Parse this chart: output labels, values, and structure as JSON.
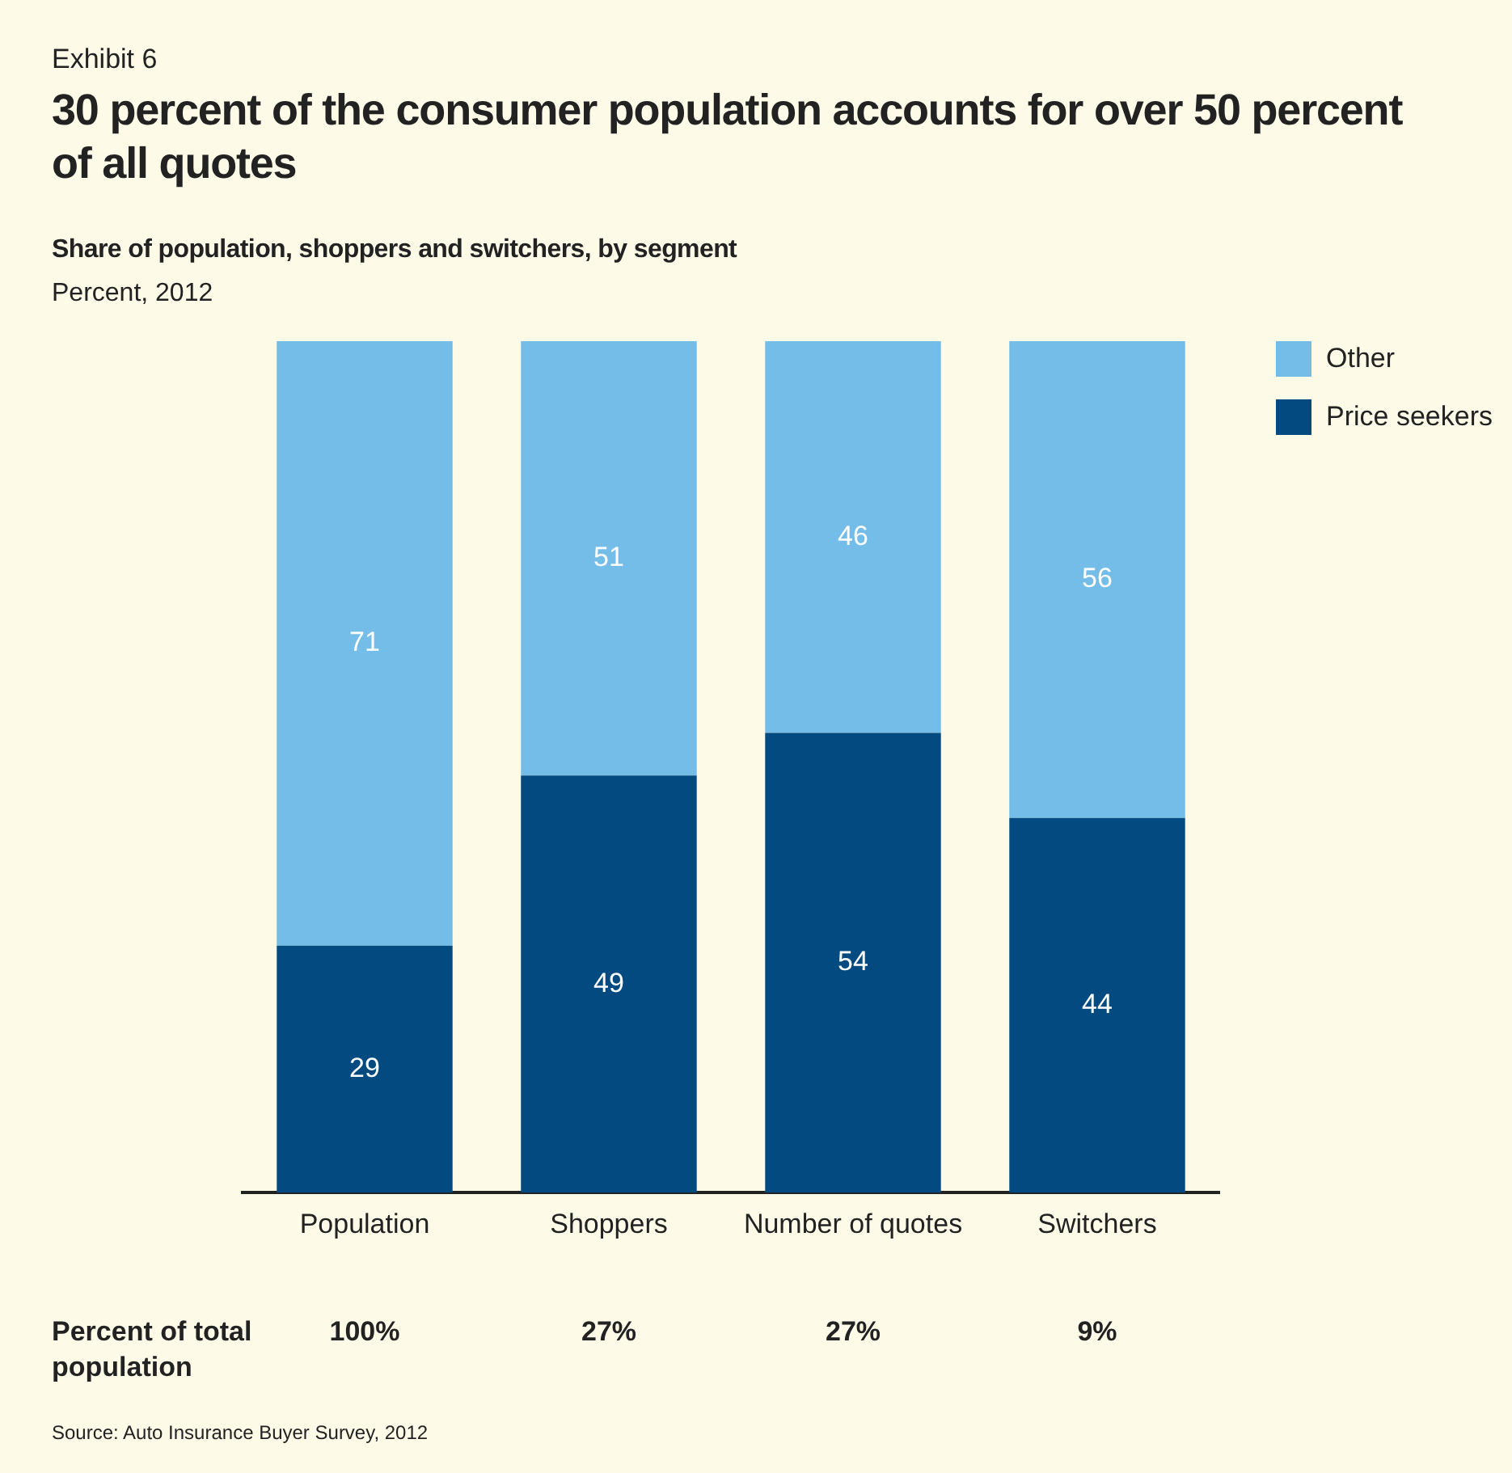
{
  "chart_data": {
    "type": "bar",
    "subtitle": "Exhibit 6",
    "title": "30 percent of the consumer population accounts for over 50 percent of all quotes",
    "ylabel": "Share of population, shoppers and switchers, by segment",
    "xlabel": "Percent, 2012",
    "categories": [
      "Population",
      "Shoppers",
      "Number of quotes",
      "Switchers"
    ],
    "series": [
      {
        "name": "Price seekers",
        "color": "#034a80",
        "values": [
          29,
          49,
          54,
          44
        ]
      },
      {
        "name": "Other",
        "color": "#73bde8",
        "values": [
          71,
          51,
          46,
          56
        ]
      }
    ],
    "stacked": true,
    "ylim": [
      0,
      100
    ],
    "tick_labels": "x",
    "grid": false,
    "legend": "top right",
    "data_labels": true,
    "annotations": [
      "Percent of total population",
      "100%",
      "27%",
      "27%",
      "9%",
      "Source: Auto Insurance Buyer Survey, 2012"
    ]
  }
}
